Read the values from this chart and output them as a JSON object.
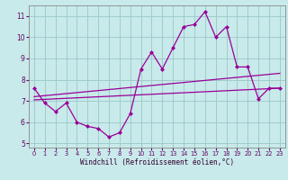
{
  "title": "",
  "xlabel": "Windchill (Refroidissement éolien,°C)",
  "bg_color": "#c8eaea",
  "grid_color": "#a0cccc",
  "line_color": "#990099",
  "x_data": [
    0,
    1,
    2,
    3,
    4,
    5,
    6,
    7,
    8,
    9,
    10,
    11,
    12,
    13,
    14,
    15,
    16,
    17,
    18,
    19,
    20,
    21,
    22,
    23
  ],
  "y_main": [
    7.6,
    6.9,
    6.5,
    6.9,
    6.0,
    5.8,
    5.7,
    5.3,
    5.5,
    6.4,
    8.5,
    9.3,
    8.5,
    9.5,
    10.5,
    10.6,
    11.2,
    10.0,
    10.5,
    8.6,
    8.6,
    7.1,
    7.6,
    7.6
  ],
  "x_reg_start": 0,
  "x_reg_end": 23,
  "y_reg_start": 7.2,
  "y_reg_end": 8.3,
  "y_reg2_start": 7.05,
  "y_reg2_end": 7.6,
  "ylim": [
    4.8,
    11.5
  ],
  "xlim": [
    -0.5,
    23.5
  ],
  "yticks": [
    5,
    6,
    7,
    8,
    9,
    10,
    11
  ],
  "xticks": [
    0,
    1,
    2,
    3,
    4,
    5,
    6,
    7,
    8,
    9,
    10,
    11,
    12,
    13,
    14,
    15,
    16,
    17,
    18,
    19,
    20,
    21,
    22,
    23
  ]
}
